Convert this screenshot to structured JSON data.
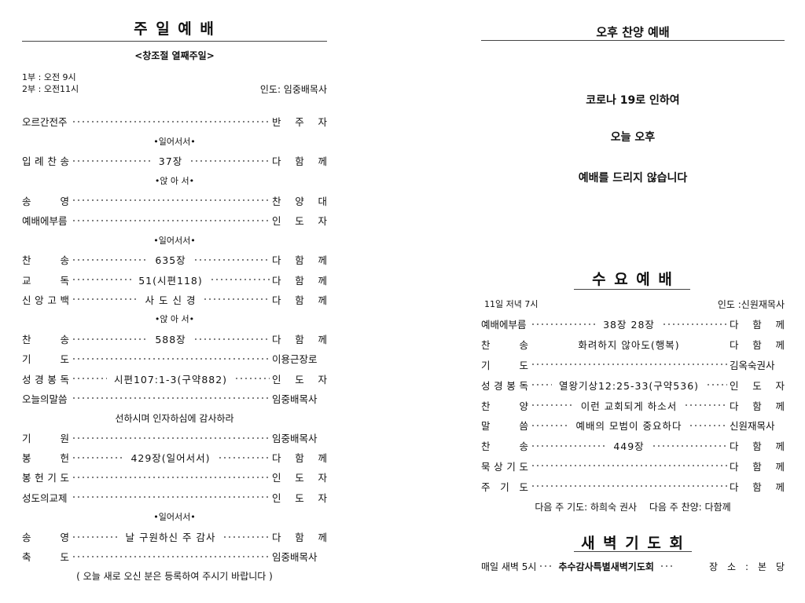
{
  "sunday": {
    "title": "주 일 예 배",
    "subtitle": "<창조절 열째주일>",
    "times": [
      "1부 : 오전 9시",
      "2부 : 오전11시"
    ],
    "leader": "인도: 임중배목사",
    "rows": [
      {
        "label": "오르간전주",
        "right": "반 주 자"
      },
      {
        "sub": "•일어서서•"
      },
      {
        "label": "입 례 찬 송",
        "mid": "37장",
        "right": "다 함 께"
      },
      {
        "sub": "•앉 아 서•"
      },
      {
        "label": "송　영",
        "right": "찬 양 대"
      },
      {
        "label": "예배에부름",
        "right": "인 도 자"
      },
      {
        "sub": "•일어서서•"
      },
      {
        "label": "찬　송",
        "mid": "635장",
        "right": "다 함 께"
      },
      {
        "label": "교　독",
        "mid": "51(시편118)",
        "right": "다 함 께"
      },
      {
        "label": "신 앙 고 백",
        "mid": "사 도 신 경",
        "right": "다 함 께"
      },
      {
        "sub": "•앉 아 서•"
      },
      {
        "label": "찬　송",
        "mid": "588장",
        "right": "다 함 께"
      },
      {
        "label": "기　도",
        "right": "이용근장로"
      },
      {
        "label": "성 경 봉 독",
        "mid": "시편107:1-3(구약882)",
        "right": "인 도 자"
      },
      {
        "label": "오늘의말씀",
        "right": "임중배목사"
      },
      {
        "center": "선하시며 인자하심에 감사하라"
      },
      {
        "label": "기　원",
        "right": "임중배목사"
      },
      {
        "label": "봉　헌",
        "mid": "429장(일어서서)",
        "right": "다 함 께"
      },
      {
        "label": "봉 헌 기 도",
        "right": "인 도 자"
      },
      {
        "label": "성도의교제",
        "right": "인 도 자"
      },
      {
        "sub": "•일어서서•"
      },
      {
        "label": "송　영",
        "mid": "날 구원하신 주 감사",
        "right": "다 함 께"
      },
      {
        "label": "축　도",
        "right": "임중배목사"
      },
      {
        "center": "( 오늘 새로 오신 분은 등록하여 주시기 바랍니다 )"
      }
    ]
  },
  "afternoon": {
    "title": "오후 찬양 예배",
    "lines": [
      "코로나 19로 인하여",
      "오늘 오후",
      "예배를 드리지 않습니다"
    ]
  },
  "wednesday": {
    "title": "수 요 예 배",
    "time": "11일 저녁 7시",
    "leader": "인도 :신원재목사",
    "rows": [
      {
        "label": "예배에부름",
        "mid": "38장 28장",
        "right": "다 함 께"
      },
      {
        "label": "찬　송",
        "mid": "화려하지 않아도(행복)",
        "right": "다 함 께",
        "nodots": true
      },
      {
        "label": "기　도",
        "right": "김옥숙권사"
      },
      {
        "label": "성 경 봉 독",
        "mid": "열왕기상12:25-33(구약536)",
        "right": "인 도 자"
      },
      {
        "label": "찬　양",
        "mid": "이런 교회되게 하소서",
        "right": "다 함 께"
      },
      {
        "label": "말　씀",
        "mid": "예배의 모범이 중요하다",
        "right": "신원재목사"
      },
      {
        "label": "찬　송",
        "mid": "449장",
        "right": "다 함 께"
      },
      {
        "label": "묵 상 기 도",
        "right": "다 함 께"
      },
      {
        "label": "주 기 도",
        "right": "다 함 께"
      },
      {
        "center": "다음 주 기도: 하희숙 권사　 다음 주 찬양: 다함께"
      }
    ]
  },
  "dawn": {
    "title": "새 벽 기 도 회",
    "time": "매일 새벽 5시",
    "event": "추수감사특별새벽기도회",
    "place": "장 소 : 본 당"
  }
}
